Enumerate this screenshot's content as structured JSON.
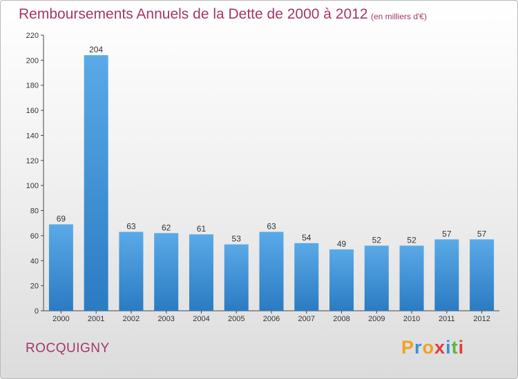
{
  "header": {
    "title": "Remboursements Annuels de la Dette de 2000 à 2012",
    "unit": "(en milliers d'€)"
  },
  "footer": {
    "commune": "ROCQUIGNY",
    "logo": "Proxiti"
  },
  "colors": {
    "title": "#a2366a",
    "bar_light": "#5aaae8",
    "bar_dark": "#2a7bc2"
  },
  "chart_data": {
    "type": "bar",
    "title": "Remboursements Annuels de la Dette de 2000 à 2012",
    "xlabel": "",
    "ylabel": "",
    "categories": [
      "2000",
      "2001",
      "2002",
      "2003",
      "2004",
      "2005",
      "2006",
      "2007",
      "2008",
      "2009",
      "2010",
      "2011",
      "2012"
    ],
    "values": [
      69,
      204,
      63,
      62,
      61,
      53,
      63,
      54,
      49,
      52,
      52,
      57,
      57
    ],
    "ylim": [
      0,
      220
    ],
    "yticks": [
      0,
      20,
      40,
      60,
      80,
      100,
      120,
      140,
      160,
      180,
      200,
      220
    ],
    "data_labels": true,
    "grid": false,
    "legend": "none"
  }
}
